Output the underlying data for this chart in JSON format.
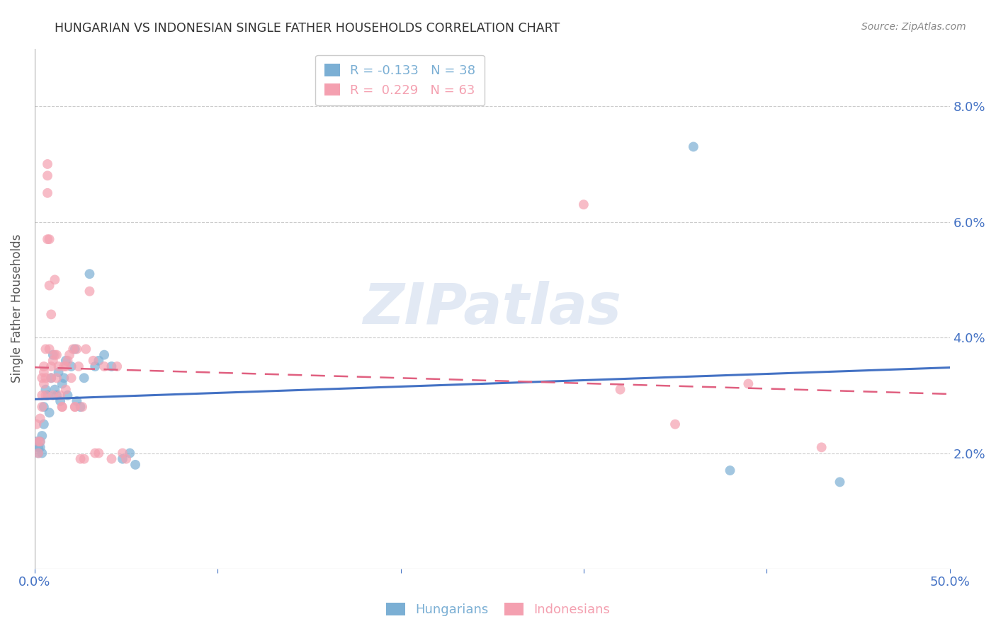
{
  "title": "HUNGARIAN VS INDONESIAN SINGLE FATHER HOUSEHOLDS CORRELATION CHART",
  "source": "Source: ZipAtlas.com",
  "ylabel": "Single Father Households",
  "xlabel": "",
  "xlim": [
    0.0,
    0.5
  ],
  "ylim": [
    0.0,
    0.09
  ],
  "yticks": [
    0.02,
    0.04,
    0.06,
    0.08
  ],
  "ytick_labels": [
    "2.0%",
    "4.0%",
    "6.0%",
    "8.0%"
  ],
  "xticks": [
    0.0,
    0.1,
    0.2,
    0.3,
    0.4,
    0.5
  ],
  "xtick_labels": [
    "0.0%",
    "",
    "",
    "",
    "",
    "50.0%"
  ],
  "legend_entry_hun": "R = -0.133   N = 38",
  "legend_entry_ind": "R =  0.229   N = 63",
  "background_color": "#ffffff",
  "watermark": "ZIPatlas",
  "title_color": "#333333",
  "axis_color": "#4472c4",
  "hungarian_color": "#7bafd4",
  "indonesian_color": "#f4a0b0",
  "hungarian_line_color": "#4472c4",
  "indonesian_line_color": "#e06080",
  "hungarian_points": [
    [
      0.001,
      0.022
    ],
    [
      0.002,
      0.021
    ],
    [
      0.002,
      0.02
    ],
    [
      0.003,
      0.021
    ],
    [
      0.003,
      0.022
    ],
    [
      0.004,
      0.023
    ],
    [
      0.004,
      0.02
    ],
    [
      0.005,
      0.028
    ],
    [
      0.005,
      0.025
    ],
    [
      0.006,
      0.031
    ],
    [
      0.007,
      0.03
    ],
    [
      0.008,
      0.027
    ],
    [
      0.009,
      0.033
    ],
    [
      0.01,
      0.037
    ],
    [
      0.011,
      0.031
    ],
    [
      0.012,
      0.03
    ],
    [
      0.013,
      0.034
    ],
    [
      0.014,
      0.029
    ],
    [
      0.015,
      0.032
    ],
    [
      0.016,
      0.033
    ],
    [
      0.017,
      0.036
    ],
    [
      0.018,
      0.03
    ],
    [
      0.02,
      0.035
    ],
    [
      0.022,
      0.038
    ],
    [
      0.023,
      0.029
    ],
    [
      0.025,
      0.028
    ],
    [
      0.027,
      0.033
    ],
    [
      0.03,
      0.051
    ],
    [
      0.033,
      0.035
    ],
    [
      0.035,
      0.036
    ],
    [
      0.038,
      0.037
    ],
    [
      0.042,
      0.035
    ],
    [
      0.048,
      0.019
    ],
    [
      0.052,
      0.02
    ],
    [
      0.055,
      0.018
    ],
    [
      0.36,
      0.073
    ],
    [
      0.38,
      0.017
    ],
    [
      0.44,
      0.015
    ]
  ],
  "indonesian_points": [
    [
      0.001,
      0.025
    ],
    [
      0.002,
      0.022
    ],
    [
      0.002,
      0.02
    ],
    [
      0.003,
      0.022
    ],
    [
      0.003,
      0.026
    ],
    [
      0.004,
      0.03
    ],
    [
      0.004,
      0.028
    ],
    [
      0.004,
      0.033
    ],
    [
      0.005,
      0.035
    ],
    [
      0.005,
      0.032
    ],
    [
      0.005,
      0.034
    ],
    [
      0.006,
      0.033
    ],
    [
      0.006,
      0.03
    ],
    [
      0.006,
      0.038
    ],
    [
      0.007,
      0.07
    ],
    [
      0.007,
      0.068
    ],
    [
      0.007,
      0.065
    ],
    [
      0.007,
      0.057
    ],
    [
      0.008,
      0.049
    ],
    [
      0.008,
      0.057
    ],
    [
      0.008,
      0.038
    ],
    [
      0.009,
      0.035
    ],
    [
      0.009,
      0.033
    ],
    [
      0.009,
      0.044
    ],
    [
      0.01,
      0.03
    ],
    [
      0.01,
      0.036
    ],
    [
      0.011,
      0.037
    ],
    [
      0.011,
      0.05
    ],
    [
      0.012,
      0.033
    ],
    [
      0.012,
      0.037
    ],
    [
      0.013,
      0.035
    ],
    [
      0.014,
      0.03
    ],
    [
      0.015,
      0.028
    ],
    [
      0.015,
      0.028
    ],
    [
      0.016,
      0.035
    ],
    [
      0.017,
      0.031
    ],
    [
      0.017,
      0.035
    ],
    [
      0.018,
      0.036
    ],
    [
      0.019,
      0.037
    ],
    [
      0.02,
      0.033
    ],
    [
      0.021,
      0.038
    ],
    [
      0.022,
      0.028
    ],
    [
      0.022,
      0.028
    ],
    [
      0.023,
      0.038
    ],
    [
      0.024,
      0.035
    ],
    [
      0.025,
      0.019
    ],
    [
      0.026,
      0.028
    ],
    [
      0.027,
      0.019
    ],
    [
      0.028,
      0.038
    ],
    [
      0.03,
      0.048
    ],
    [
      0.032,
      0.036
    ],
    [
      0.033,
      0.02
    ],
    [
      0.035,
      0.02
    ],
    [
      0.038,
      0.035
    ],
    [
      0.042,
      0.019
    ],
    [
      0.045,
      0.035
    ],
    [
      0.048,
      0.02
    ],
    [
      0.05,
      0.019
    ],
    [
      0.3,
      0.063
    ],
    [
      0.32,
      0.031
    ],
    [
      0.35,
      0.025
    ],
    [
      0.39,
      0.032
    ],
    [
      0.43,
      0.021
    ]
  ]
}
